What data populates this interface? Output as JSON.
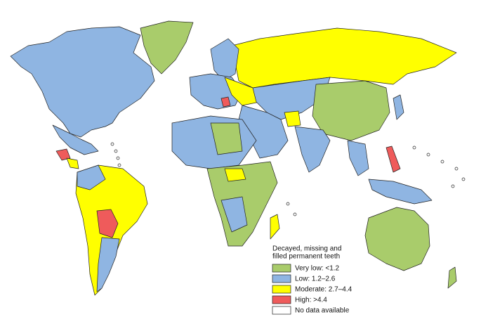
{
  "legend": {
    "title_lines": [
      "Decayed, missing and",
      "filled permanent teeth"
    ],
    "items": [
      {
        "label": "Very low: <1.2",
        "color": "#a9cc6b"
      },
      {
        "label": "Low: 1.2–2.6",
        "color": "#8fb5e2"
      },
      {
        "label": "Moderate: 2.7–4.4",
        "color": "#ffff00"
      },
      {
        "label": "High: >4.4",
        "color": "#ef5b5b"
      },
      {
        "label": "No data available",
        "color": "#ffffff"
      }
    ]
  }
}
